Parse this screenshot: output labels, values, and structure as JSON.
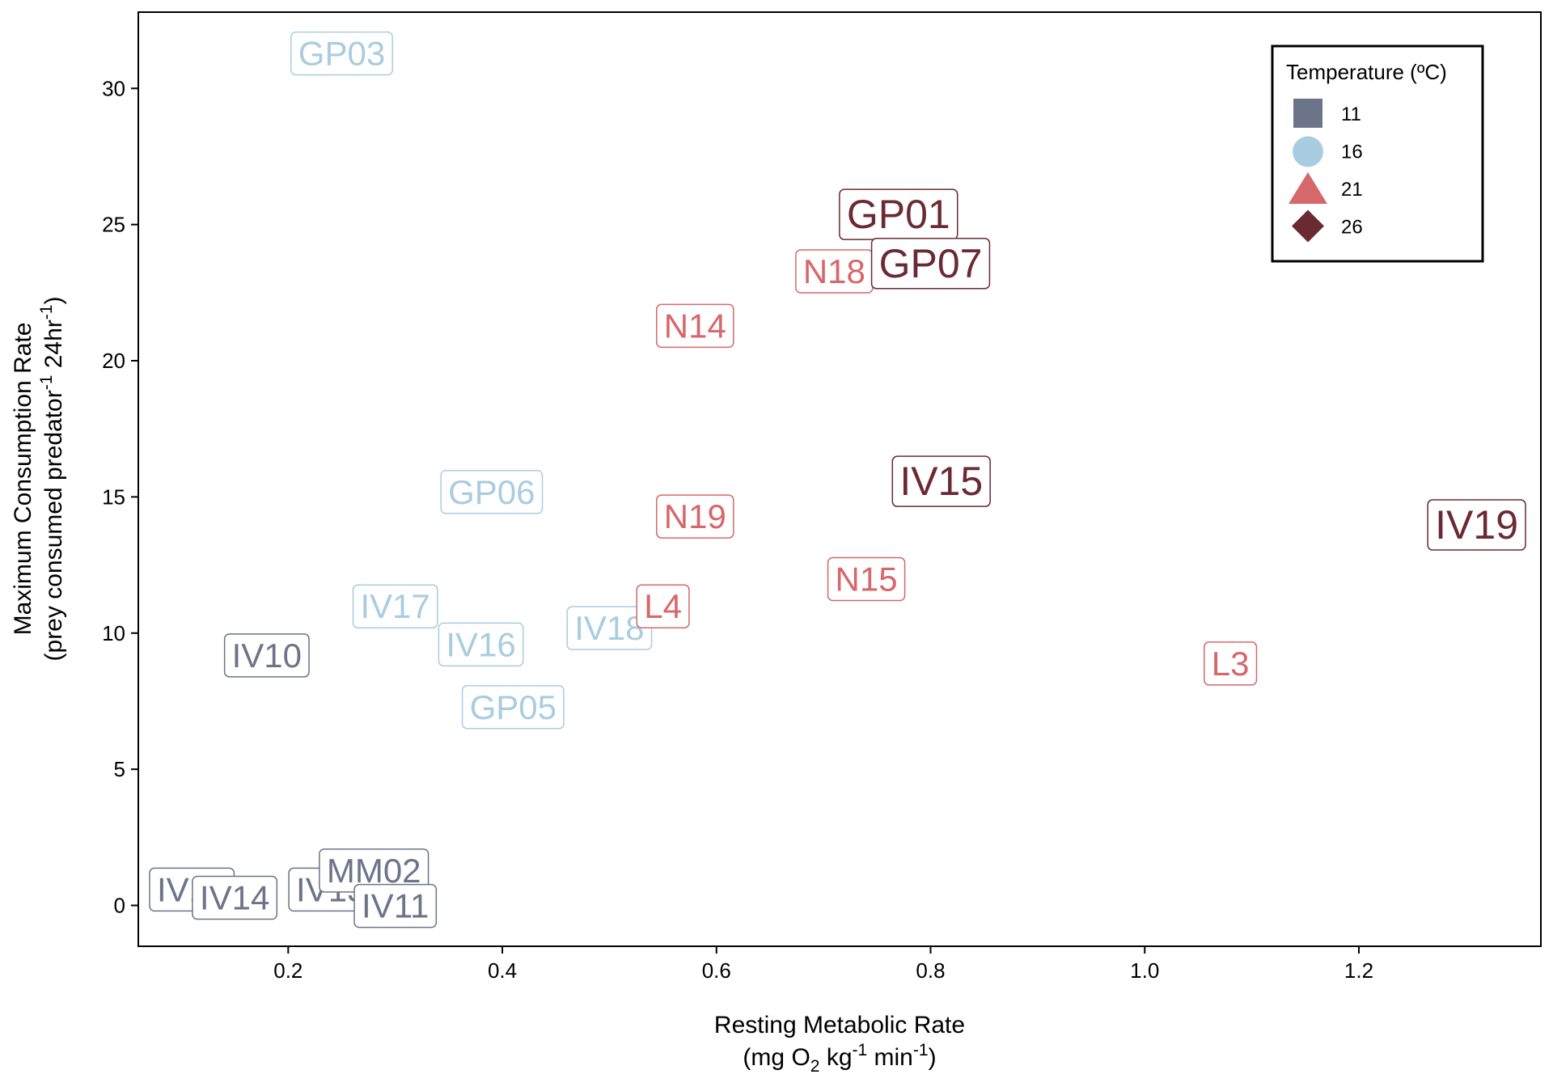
{
  "chart_data": {
    "type": "scatter",
    "title": "",
    "xlabel_line1": "Resting Metabolic Rate",
    "xlabel_line2": "(mg O2 kg-1 min-1)",
    "ylabel_line1": "Maximum Consumption Rate",
    "ylabel_line2": "(prey consumed predator-1 24hr-1)",
    "xlim": [
      0.06,
      1.37
    ],
    "ylim": [
      -1.5,
      32.8
    ],
    "xticks": [
      0.2,
      0.4,
      0.6,
      0.8,
      1.0,
      1.2
    ],
    "xtick_labels": [
      "0.2",
      "0.4",
      "0.6",
      "0.8",
      "1.0",
      "1.2"
    ],
    "yticks": [
      0,
      5,
      10,
      15,
      20,
      25,
      30
    ],
    "ytick_labels": [
      "0",
      "5",
      "10",
      "15",
      "20",
      "25",
      "30"
    ],
    "grid": false,
    "legend": {
      "title": "Temperature (ºC)",
      "position": "top-right",
      "entries": [
        {
          "label": "11",
          "shape": "square",
          "color": "#6b7489"
        },
        {
          "label": "16",
          "shape": "circle",
          "color": "#a9cde0"
        },
        {
          "label": "21",
          "shape": "triangle",
          "color": "#d6676b"
        },
        {
          "label": "26",
          "shape": "diamond",
          "color": "#6b2a33"
        }
      ]
    },
    "series": [
      {
        "name": "11",
        "color": "#6b7489",
        "points": [
          {
            "label": "IV10",
            "x": 0.18,
            "y": 9.2
          },
          {
            "label": "IV12",
            "x": 0.11,
            "y": 0.6
          },
          {
            "label": "IV14",
            "x": 0.15,
            "y": 0.3
          },
          {
            "label": "IV13",
            "x": 0.24,
            "y": 0.6
          },
          {
            "label": "MM02",
            "x": 0.28,
            "y": 1.3
          },
          {
            "label": "IV11",
            "x": 0.3,
            "y": 0.0
          }
        ]
      },
      {
        "name": "16",
        "color": "#a9cde0",
        "points": [
          {
            "label": "GP03",
            "x": 0.25,
            "y": 31.3
          },
          {
            "label": "GP06",
            "x": 0.39,
            "y": 15.2
          },
          {
            "label": "IV17",
            "x": 0.3,
            "y": 11.0
          },
          {
            "label": "IV16",
            "x": 0.38,
            "y": 9.6
          },
          {
            "label": "IV18",
            "x": 0.5,
            "y": 10.2
          },
          {
            "label": "GP05",
            "x": 0.41,
            "y": 7.3
          }
        ]
      },
      {
        "name": "21",
        "color": "#d6676b",
        "points": [
          {
            "label": "N18",
            "x": 0.71,
            "y": 23.3
          },
          {
            "label": "N14",
            "x": 0.58,
            "y": 21.3
          },
          {
            "label": "N19",
            "x": 0.58,
            "y": 14.3
          },
          {
            "label": "N15",
            "x": 0.74,
            "y": 12.0
          },
          {
            "label": "L4",
            "x": 0.55,
            "y": 11.0
          },
          {
            "label": "L3",
            "x": 1.08,
            "y": 8.9
          }
        ]
      },
      {
        "name": "26",
        "color": "#6b2a33",
        "points": [
          {
            "label": "GP01",
            "x": 0.77,
            "y": 25.4
          },
          {
            "label": "GP07",
            "x": 0.8,
            "y": 23.6
          },
          {
            "label": "IV15",
            "x": 0.81,
            "y": 15.6
          },
          {
            "label": "IV19",
            "x": 1.31,
            "y": 14.0
          }
        ]
      }
    ]
  }
}
